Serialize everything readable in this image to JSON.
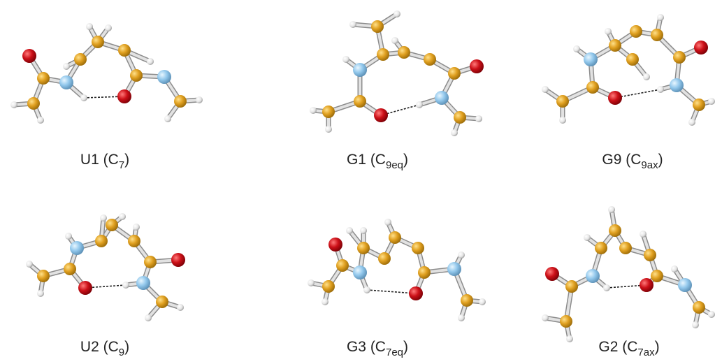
{
  "panels": [
    {
      "text": "U1 (C",
      "subscript": "7",
      "suffix": ")"
    },
    {
      "text": "G1 (C",
      "subscript": "9eq",
      "suffix": ")"
    },
    {
      "text": "G9 (C",
      "subscript": "9ax",
      "suffix": ")"
    },
    {
      "text": "U2 (C",
      "subscript": "9",
      "suffix": ")"
    },
    {
      "text": "G3 (C",
      "subscript": "7eq",
      "suffix": ")"
    },
    {
      "text": "G2 (C",
      "subscript": "7ax",
      "suffix": ")"
    }
  ]
}
